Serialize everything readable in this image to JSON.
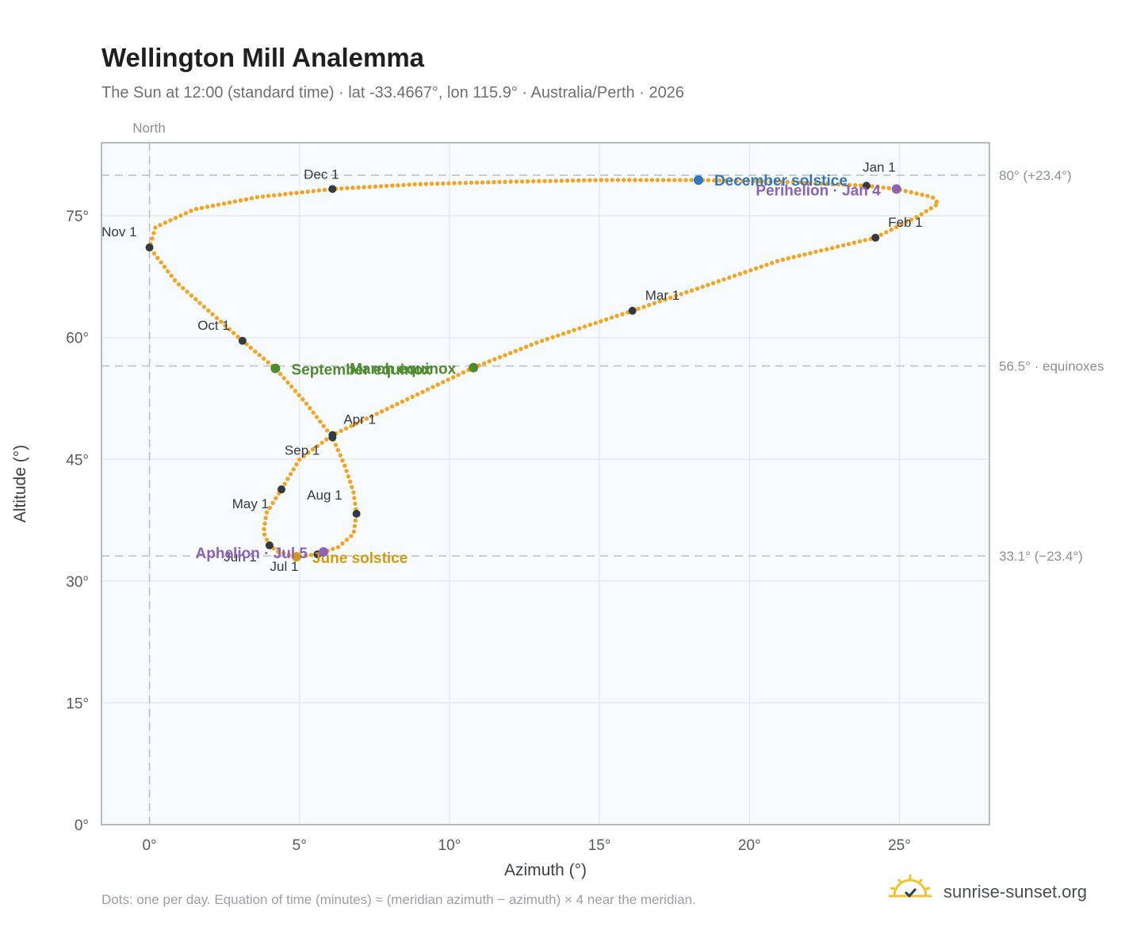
{
  "header": {
    "title": "Wellington Mill Analemma",
    "subtitle": "The Sun at 12:00 (standard time) · lat -33.4667°, lon 115.9° · Australia/Perth · 2026",
    "north_label": "North"
  },
  "footer": {
    "note": "Dots: one per day. Equation of time (minutes) ≈ (meridian azimuth − azimuth) × 4 near the meridian.",
    "brand": "sunrise-sunset.org",
    "brand_icon": "sun-check-icon"
  },
  "colors": {
    "curve": "#f2a524",
    "month_dot": "#343a40",
    "equinox": "#4e8a2e",
    "december_solstice": "#2f77c0",
    "june_solstice": "#d39a14",
    "perihelion": "#8d62b3",
    "grid": "#e6e9ee",
    "plot_bg": "#f8fbfd",
    "frame": "#9aa5b4",
    "ref_line": "#b9c2cc"
  },
  "chart_data": {
    "type": "scatter",
    "title": "Wellington Mill Analemma",
    "xlabel": "Azimuth (°)",
    "ylabel": "Altitude (°)",
    "xlim": [
      -1.6,
      28
    ],
    "ylim": [
      0,
      84
    ],
    "x_ticks": [
      0,
      5,
      10,
      15,
      20,
      25
    ],
    "x_tick_labels": [
      "0°",
      "5°",
      "10°",
      "15°",
      "20°",
      "25°"
    ],
    "y_ticks": [
      0,
      15,
      30,
      45,
      60,
      75
    ],
    "y_tick_labels": [
      "0°",
      "15°",
      "30°",
      "45°",
      "60°",
      "75°"
    ],
    "grid": true,
    "reference_lines": [
      {
        "axis": "y",
        "value": 80,
        "label": "80° (+23.4°)"
      },
      {
        "axis": "y",
        "value": 56.5,
        "label": "56.5° · equinoxes"
      },
      {
        "axis": "y",
        "value": 33.1,
        "label": "33.1° (−23.4°)"
      },
      {
        "axis": "x",
        "value": 0,
        "label": "North"
      }
    ],
    "month_markers": [
      {
        "label": "Jan 1",
        "x": 23.9,
        "y": 78.7
      },
      {
        "label": "Feb 1",
        "x": 24.2,
        "y": 72.3
      },
      {
        "label": "Mar 1",
        "x": 16.1,
        "y": 63.3
      },
      {
        "label": "Apr 1",
        "x": 6.1,
        "y": 48.0
      },
      {
        "label": "May 1",
        "x": 4.4,
        "y": 41.3
      },
      {
        "label": "Jun 1",
        "x": 4.0,
        "y": 34.4
      },
      {
        "label": "Jul 1",
        "x": 5.6,
        "y": 33.3
      },
      {
        "label": "Aug 1",
        "x": 6.9,
        "y": 38.3
      },
      {
        "label": "Sep 1",
        "x": 6.1,
        "y": 47.7
      },
      {
        "label": "Oct 1",
        "x": 3.1,
        "y": 59.6
      },
      {
        "label": "Nov 1",
        "x": 0.0,
        "y": 71.1
      },
      {
        "label": "Dec 1",
        "x": 6.1,
        "y": 78.3
      }
    ],
    "events": [
      {
        "label": "December solstice",
        "x": 18.3,
        "y": 79.4,
        "color_key": "december_solstice"
      },
      {
        "label": "Perihelion · Jan 4",
        "x": 24.9,
        "y": 78.3,
        "color_key": "perihelion"
      },
      {
        "label": "March equinox",
        "x": 10.8,
        "y": 56.3,
        "color_key": "equinox"
      },
      {
        "label": "September equinox",
        "x": 4.2,
        "y": 56.2,
        "color_key": "equinox"
      },
      {
        "label": "June solstice",
        "x": 4.9,
        "y": 33.0,
        "color_key": "june_solstice"
      },
      {
        "label": "Aphelion · Jul 5",
        "x": 5.8,
        "y": 33.6,
        "color_key": "perihelion"
      }
    ],
    "curve": [
      [
        23.9,
        78.7
      ],
      [
        24.9,
        78.3
      ],
      [
        26.1,
        77.3
      ],
      [
        26.3,
        76.5
      ],
      [
        25.7,
        75.1
      ],
      [
        24.2,
        72.3
      ],
      [
        21.0,
        69.5
      ],
      [
        16.1,
        63.3
      ],
      [
        13.0,
        59.5
      ],
      [
        10.8,
        56.3
      ],
      [
        8.2,
        51.7
      ],
      [
        6.1,
        48.0
      ],
      [
        5.0,
        45.0
      ],
      [
        4.4,
        41.3
      ],
      [
        3.9,
        38.4
      ],
      [
        3.8,
        36.0
      ],
      [
        4.0,
        34.4
      ],
      [
        4.3,
        33.6
      ],
      [
        4.9,
        33.0
      ],
      [
        5.6,
        33.3
      ],
      [
        6.3,
        34.2
      ],
      [
        6.8,
        35.8
      ],
      [
        6.9,
        38.3
      ],
      [
        6.8,
        41.0
      ],
      [
        6.5,
        44.3
      ],
      [
        6.1,
        47.7
      ],
      [
        5.2,
        52.0
      ],
      [
        4.2,
        56.2
      ],
      [
        3.1,
        59.6
      ],
      [
        2.0,
        63.2
      ],
      [
        0.9,
        66.8
      ],
      [
        0.0,
        71.1
      ],
      [
        0.2,
        73.6
      ],
      [
        1.5,
        75.8
      ],
      [
        3.6,
        77.3
      ],
      [
        6.1,
        78.3
      ],
      [
        9.0,
        78.9
      ],
      [
        12.0,
        79.2
      ],
      [
        15.0,
        79.4
      ],
      [
        18.3,
        79.4
      ],
      [
        21.0,
        79.2
      ],
      [
        23.9,
        78.7
      ]
    ]
  }
}
